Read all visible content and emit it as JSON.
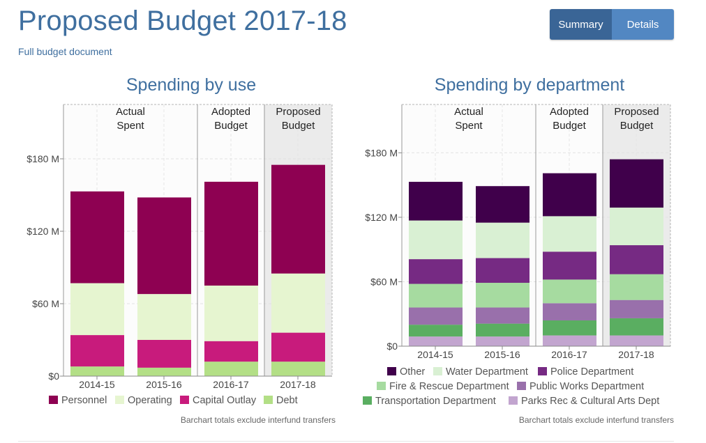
{
  "header": {
    "title": "Proposed Budget 2017-18",
    "link_text": "Full budget document",
    "toggle": {
      "summary_label": "Summary",
      "details_label": "Details",
      "active": "Summary"
    }
  },
  "chart_data": [
    {
      "id": "use",
      "type": "bar",
      "stacked": true,
      "title": "Spending by use",
      "categories": [
        "2014-15",
        "2015-16",
        "2016-17",
        "2017-18"
      ],
      "ylim": [
        0,
        225
      ],
      "yticks": [
        0,
        60,
        120,
        180
      ],
      "ytick_labels": [
        "$0",
        "$60 M",
        "$120 M",
        "$180 M"
      ],
      "grid": true,
      "periods": [
        {
          "label_lines": [
            "Actual",
            "Spent"
          ],
          "from": 0,
          "to": 1,
          "color": "#fcfcfc"
        },
        {
          "label_lines": [
            "Adopted",
            "Budget"
          ],
          "from": 2,
          "to": 2,
          "color": "#fcfcfc"
        },
        {
          "label_lines": [
            "Proposed",
            "Budget"
          ],
          "from": 3,
          "to": 3,
          "color": "#ebebeb"
        }
      ],
      "series": [
        {
          "name": "Debt",
          "color": "#b3df86",
          "values": [
            8,
            7,
            12,
            12
          ]
        },
        {
          "name": "Capital Outlay",
          "color": "#c81b7c",
          "values": [
            26,
            23,
            17,
            24
          ]
        },
        {
          "name": "Operating",
          "color": "#e6f5d0",
          "values": [
            43,
            38,
            46,
            49
          ]
        },
        {
          "name": "Personnel",
          "color": "#8e0152",
          "values": [
            76,
            80,
            86,
            90
          ]
        }
      ],
      "legend_order": [
        "Personnel",
        "Operating",
        "Capital Outlay",
        "Debt"
      ],
      "legend_position": "bottom",
      "note": "Barchart totals exclude interfund transfers"
    },
    {
      "id": "department",
      "type": "bar",
      "stacked": true,
      "title": "Spending by department",
      "categories": [
        "2014-15",
        "2015-16",
        "2016-17",
        "2017-18"
      ],
      "ylim": [
        0,
        225
      ],
      "yticks": [
        0,
        60,
        120,
        180
      ],
      "ytick_labels": [
        "$0",
        "$60 M",
        "$120 M",
        "$180 M"
      ],
      "grid": true,
      "periods": [
        {
          "label_lines": [
            "Actual",
            "Spent"
          ],
          "from": 0,
          "to": 1,
          "color": "#fcfcfc"
        },
        {
          "label_lines": [
            "Adopted",
            "Budget"
          ],
          "from": 2,
          "to": 2,
          "color": "#fcfcfc"
        },
        {
          "label_lines": [
            "Proposed",
            "Budget"
          ],
          "from": 3,
          "to": 3,
          "color": "#ebebeb"
        }
      ],
      "series": [
        {
          "name": "Parks Rec & Cultural Arts Dept",
          "color": "#c2a5cf",
          "values": [
            9,
            9,
            10,
            10
          ]
        },
        {
          "name": "Transportation Department",
          "color": "#5aae61",
          "values": [
            11,
            12,
            14,
            16
          ]
        },
        {
          "name": "Public Works Department",
          "color": "#9970ab",
          "values": [
            16,
            15,
            16,
            17
          ]
        },
        {
          "name": "Fire & Rescue Department",
          "color": "#a6dba0",
          "values": [
            22,
            23,
            22,
            24
          ]
        },
        {
          "name": "Police Department",
          "color": "#762a83",
          "values": [
            23,
            23,
            26,
            27
          ]
        },
        {
          "name": "Water Department",
          "color": "#d9f0d3",
          "values": [
            36,
            33,
            33,
            35
          ]
        },
        {
          "name": "Other",
          "color": "#40004b",
          "values": [
            36,
            34,
            40,
            45
          ]
        }
      ],
      "legend_order": [
        "Other",
        "Water Department",
        "Police Department",
        "Fire & Rescue Department",
        "Public Works Department",
        "Transportation Department",
        "Parks Rec & Cultural Arts Dept"
      ],
      "legend_position": "bottom",
      "note": "Barchart totals exclude interfund transfers"
    }
  ]
}
